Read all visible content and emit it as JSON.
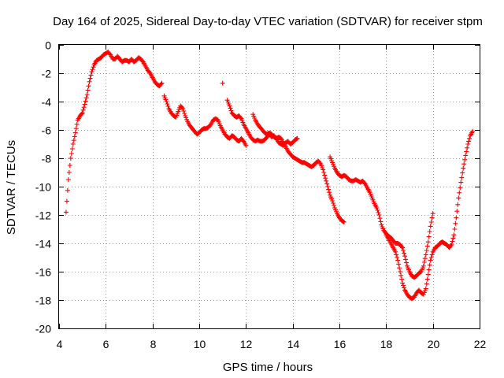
{
  "chart_data": {
    "type": "scatter",
    "title": "Day 164 of 2025, Sidereal Day-to-day VTEC variation (SDTVAR) for receiver stpm",
    "xlabel": "GPS time / hours",
    "ylabel": "SDTVAR / TECUs",
    "xlim": [
      4,
      22
    ],
    "ylim": [
      -20,
      0
    ],
    "xticks": [
      "4",
      "6",
      "8",
      "10",
      "12",
      "14",
      "16",
      "18",
      "20",
      "22"
    ],
    "yticks": [
      "0",
      "-2",
      "-4",
      "-6",
      "-8",
      "-10",
      "-12",
      "-14",
      "-16",
      "-18",
      "-20"
    ],
    "grid": true,
    "marker": "+",
    "color": "#ff0000",
    "series": [
      {
        "name": "segment-1",
        "x": [
          4.3,
          4.4,
          4.5,
          4.6,
          4.7,
          4.8,
          4.9,
          5.0,
          5.1,
          5.2,
          5.3,
          5.4,
          5.5,
          5.6,
          5.7,
          5.8,
          5.9,
          6.0,
          6.1,
          6.2,
          6.3,
          6.4,
          6.5,
          6.6,
          6.7,
          6.8,
          6.9,
          7.0,
          7.1,
          7.2,
          7.3,
          7.4,
          7.5,
          7.6,
          7.7,
          7.8,
          7.9,
          8.0,
          8.1,
          8.2,
          8.3,
          8.4
        ],
        "y": [
          -11.8,
          -9.5,
          -8.0,
          -7.0,
          -6.2,
          -5.3,
          -5.0,
          -4.8,
          -4.2,
          -3.5,
          -2.6,
          -1.9,
          -1.4,
          -1.1,
          -1.0,
          -0.9,
          -0.7,
          -0.6,
          -0.5,
          -0.7,
          -1.0,
          -1.0,
          -0.8,
          -1.0,
          -1.2,
          -1.1,
          -1.1,
          -1.2,
          -1.0,
          -1.2,
          -1.1,
          -0.9,
          -1.0,
          -1.2,
          -1.5,
          -1.8,
          -2.0,
          -2.3,
          -2.6,
          -2.8,
          -2.9,
          -2.7
        ]
      },
      {
        "name": "segment-2",
        "x": [
          8.5,
          8.6,
          8.7,
          8.8,
          8.9,
          9.0,
          9.1,
          9.2,
          9.3,
          9.4,
          9.5,
          9.6,
          9.7,
          9.8,
          9.9,
          10.0,
          10.1,
          10.2,
          10.3,
          10.4,
          10.5,
          10.6,
          10.7,
          10.8,
          10.9,
          11.0,
          11.1,
          11.2,
          11.3,
          11.4,
          11.5,
          11.6,
          11.7,
          11.8,
          11.9,
          12.0
        ],
        "y": [
          -3.6,
          -4.0,
          -4.5,
          -4.8,
          -5.0,
          -5.1,
          -4.7,
          -4.3,
          -4.5,
          -5.0,
          -5.4,
          -5.7,
          -5.9,
          -6.1,
          -6.3,
          -6.2,
          -6.0,
          -5.9,
          -5.9,
          -5.8,
          -5.6,
          -5.3,
          -5.2,
          -5.3,
          -5.7,
          -6.0,
          -6.3,
          -6.5,
          -6.6,
          -6.4,
          -6.5,
          -6.7,
          -6.8,
          -6.6,
          -6.8,
          -7.1
        ]
      },
      {
        "name": "segment-3",
        "x": [
          11.0
        ],
        "y": [
          -2.7
        ]
      },
      {
        "name": "segment-4",
        "x": [
          11.2,
          11.3,
          11.4,
          11.5,
          11.6,
          11.7,
          11.8,
          11.9,
          12.0,
          12.1,
          12.2,
          12.3,
          12.4,
          12.5,
          12.6,
          12.7,
          12.8,
          12.9,
          13.0,
          13.1,
          13.2,
          13.3,
          13.4,
          13.5,
          13.6,
          13.7,
          13.8,
          13.9,
          14.0,
          14.1,
          14.2
        ],
        "y": [
          -3.9,
          -4.3,
          -4.8,
          -5.0,
          -5.1,
          -5.0,
          -5.2,
          -5.6,
          -5.9,
          -6.2,
          -6.5,
          -6.7,
          -6.8,
          -6.7,
          -6.8,
          -6.8,
          -6.7,
          -6.5,
          -6.3,
          -6.5,
          -6.4,
          -6.6,
          -6.9,
          -7.0,
          -7.1,
          -6.9,
          -6.8,
          -7.0,
          -6.9,
          -6.7,
          -6.6
        ]
      },
      {
        "name": "segment-5",
        "x": [
          12.3,
          12.4,
          12.5,
          12.6,
          12.7,
          12.8,
          12.9,
          13.0,
          13.1,
          13.2,
          13.3,
          13.4,
          13.5,
          13.6,
          13.7,
          13.8,
          13.9,
          14.0,
          14.1,
          14.2,
          14.3,
          14.4,
          14.5,
          14.6,
          14.7,
          14.8,
          14.9,
          15.0,
          15.1,
          15.2,
          15.3,
          15.4,
          15.5,
          15.6,
          15.7,
          15.8,
          15.9,
          16.0,
          16.1,
          16.2
        ],
        "y": [
          -4.9,
          -5.3,
          -5.6,
          -5.8,
          -6.0,
          -6.2,
          -6.3,
          -6.2,
          -6.3,
          -6.5,
          -6.6,
          -6.5,
          -6.6,
          -6.9,
          -7.2,
          -7.5,
          -7.7,
          -7.9,
          -8.0,
          -8.1,
          -8.2,
          -8.3,
          -8.3,
          -8.4,
          -8.5,
          -8.6,
          -8.5,
          -8.3,
          -8.2,
          -8.4,
          -8.8,
          -9.4,
          -10.0,
          -10.6,
          -11.0,
          -11.5,
          -11.9,
          -12.2,
          -12.4,
          -12.5
        ]
      },
      {
        "name": "segment-6",
        "x": [
          15.6,
          15.7,
          15.8,
          15.9,
          16.0,
          16.1,
          16.2,
          16.3,
          16.4,
          16.5,
          16.6,
          16.7,
          16.8,
          16.9,
          17.0,
          17.1,
          17.2,
          17.3,
          17.4,
          17.5,
          17.6,
          17.7,
          17.8,
          17.9,
          18.0,
          18.1,
          18.2,
          18.3,
          18.4,
          18.5,
          18.6,
          18.7,
          18.8,
          18.9,
          19.0,
          19.1,
          19.2,
          19.3,
          19.4,
          19.5,
          19.6,
          19.7,
          19.8,
          19.9,
          20.0
        ],
        "y": [
          -7.9,
          -8.3,
          -8.7,
          -9.0,
          -9.2,
          -9.3,
          -9.2,
          -9.3,
          -9.5,
          -9.6,
          -9.6,
          -9.5,
          -9.6,
          -9.7,
          -9.6,
          -9.8,
          -10.1,
          -10.4,
          -10.8,
          -11.2,
          -11.5,
          -12.0,
          -12.7,
          -13.1,
          -13.3,
          -13.5,
          -13.6,
          -13.8,
          -14.0,
          -14.0,
          -14.1,
          -14.3,
          -14.9,
          -15.6,
          -16.0,
          -16.3,
          -16.4,
          -16.3,
          -16.1,
          -16.0,
          -15.6,
          -14.8,
          -13.9,
          -12.8,
          -11.9
        ]
      },
      {
        "name": "segment-7",
        "x": [
          18.0,
          18.1,
          18.2,
          18.3,
          18.4,
          18.5,
          18.6,
          18.7,
          18.8,
          18.9,
          19.0,
          19.1,
          19.2,
          19.3,
          19.4,
          19.5,
          19.6,
          19.7,
          19.8,
          19.9,
          20.0,
          20.1,
          20.2,
          20.3,
          20.4,
          20.5,
          20.6,
          20.7,
          20.8,
          20.9,
          21.0,
          21.1,
          21.2,
          21.3,
          21.4,
          21.5,
          21.6,
          21.7
        ],
        "y": [
          -13.4,
          -13.7,
          -14.0,
          -14.3,
          -14.6,
          -15.2,
          -16.0,
          -16.8,
          -17.3,
          -17.6,
          -17.8,
          -17.9,
          -17.8,
          -17.5,
          -17.3,
          -17.5,
          -17.6,
          -17.2,
          -16.2,
          -15.2,
          -14.6,
          -14.3,
          -14.2,
          -14.0,
          -13.9,
          -14.0,
          -14.1,
          -14.3,
          -14.1,
          -13.4,
          -12.2,
          -10.8,
          -9.7,
          -8.7,
          -7.8,
          -7.0,
          -6.4,
          -6.1
        ]
      }
    ]
  }
}
